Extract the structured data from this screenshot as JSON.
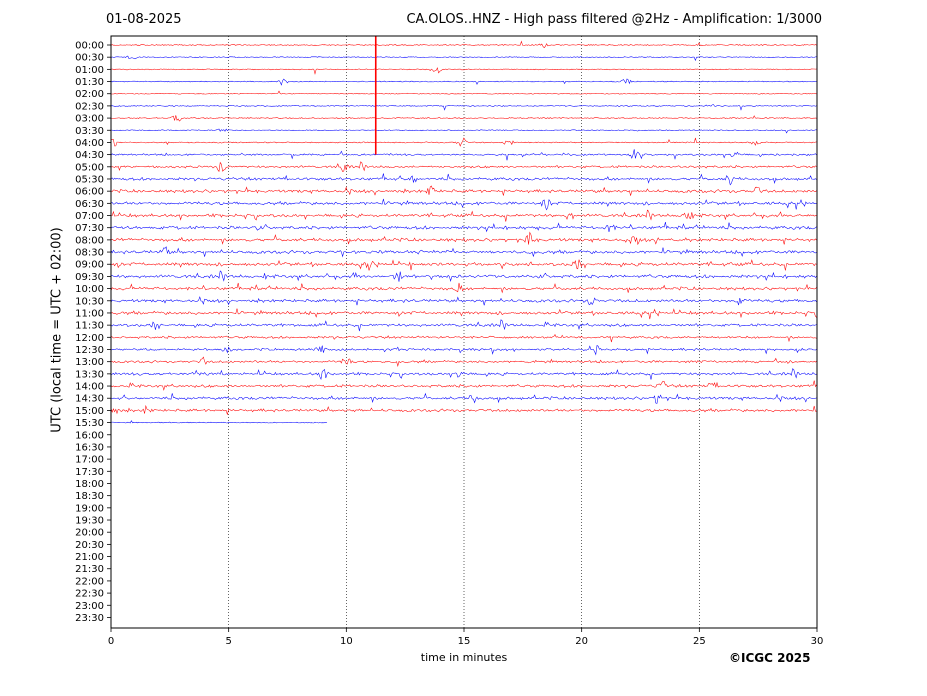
{
  "header": {
    "date": "01-08-2025",
    "title": "CA.OLOS..HNZ - High pass filtered @2Hz - Amplification: 1/3000"
  },
  "footer": {
    "copyright": "©ICGC 2025"
  },
  "colors": {
    "even_trace": "#ff0000",
    "odd_trace": "#0000ff",
    "grid": "#000000"
  },
  "chart_data": {
    "type": "line",
    "title": "CA.OLOS..HNZ - High pass filtered @2Hz - Amplification: 1/3000",
    "xlabel": "time in minutes",
    "ylabel": "UTC (local time = UTC + 02:00)",
    "xlim": [
      0,
      30
    ],
    "xticks": [
      0,
      5,
      10,
      15,
      20,
      25,
      30
    ],
    "grid_x": true,
    "rows": [
      "00:00",
      "00:30",
      "01:00",
      "01:30",
      "02:00",
      "02:30",
      "03:00",
      "03:30",
      "04:00",
      "04:30",
      "05:00",
      "05:30",
      "06:00",
      "06:30",
      "07:00",
      "07:30",
      "08:00",
      "08:30",
      "09:00",
      "09:30",
      "10:00",
      "10:30",
      "11:00",
      "11:30",
      "12:00",
      "12:30",
      "13:00",
      "13:30",
      "14:00",
      "14:30",
      "15:00",
      "15:30",
      "16:00",
      "16:30",
      "17:00",
      "17:30",
      "18:00",
      "18:30",
      "19:00",
      "19:30",
      "20:00",
      "20:30",
      "21:00",
      "21:30",
      "22:00",
      "22:30",
      "23:00",
      "23:30"
    ],
    "series": [
      {
        "row": "00:00",
        "end_min": 30,
        "activity": 0.05
      },
      {
        "row": "00:30",
        "end_min": 30,
        "activity": 0.05
      },
      {
        "row": "01:00",
        "end_min": 30,
        "activity": 0.05
      },
      {
        "row": "01:30",
        "end_min": 30,
        "activity": 0.05
      },
      {
        "row": "02:00",
        "end_min": 30,
        "activity": 0.05
      },
      {
        "row": "02:30",
        "end_min": 30,
        "activity": 0.05
      },
      {
        "row": "03:00",
        "end_min": 30,
        "activity": 0.08
      },
      {
        "row": "03:30",
        "end_min": 30,
        "activity": 0.08
      },
      {
        "row": "04:00",
        "end_min": 30,
        "activity": 0.15
      },
      {
        "row": "04:30",
        "end_min": 30,
        "activity": 0.4
      },
      {
        "row": "05:00",
        "end_min": 30,
        "activity": 0.6
      },
      {
        "row": "05:30",
        "end_min": 30,
        "activity": 0.8
      },
      {
        "row": "06:00",
        "end_min": 30,
        "activity": 0.9
      },
      {
        "row": "06:30",
        "end_min": 30,
        "activity": 0.9
      },
      {
        "row": "07:00",
        "end_min": 30,
        "activity": 0.9
      },
      {
        "row": "07:30",
        "end_min": 30,
        "activity": 1.0
      },
      {
        "row": "08:00",
        "end_min": 30,
        "activity": 1.0
      },
      {
        "row": "08:30",
        "end_min": 30,
        "activity": 1.0
      },
      {
        "row": "09:00",
        "end_min": 30,
        "activity": 1.0
      },
      {
        "row": "09:30",
        "end_min": 30,
        "activity": 1.0
      },
      {
        "row": "10:00",
        "end_min": 30,
        "activity": 0.9
      },
      {
        "row": "10:30",
        "end_min": 30,
        "activity": 0.9
      },
      {
        "row": "11:00",
        "end_min": 30,
        "activity": 0.9
      },
      {
        "row": "11:30",
        "end_min": 30,
        "activity": 0.8
      },
      {
        "row": "12:00",
        "end_min": 30,
        "activity": 0.6
      },
      {
        "row": "12:30",
        "end_min": 30,
        "activity": 0.6
      },
      {
        "row": "13:00",
        "end_min": 30,
        "activity": 0.6
      },
      {
        "row": "13:30",
        "end_min": 30,
        "activity": 0.7
      },
      {
        "row": "14:00",
        "end_min": 30,
        "activity": 0.8
      },
      {
        "row": "14:30",
        "end_min": 30,
        "activity": 0.8
      },
      {
        "row": "15:00",
        "end_min": 30,
        "activity": 0.8
      },
      {
        "row": "15:30",
        "end_min": 9.2,
        "activity": 0.05
      }
    ],
    "events": [
      {
        "row": "00:00",
        "min": 18.4,
        "amp": 0.2
      },
      {
        "row": "00:30",
        "min": 0.9,
        "amp": 0.2
      },
      {
        "row": "01:00",
        "min": 13.8,
        "amp": 0.6
      },
      {
        "row": "01:30",
        "min": 7.3,
        "amp": 0.2
      },
      {
        "row": "01:30",
        "min": 21.9,
        "amp": 0.3
      },
      {
        "row": "02:30",
        "min": 25.5,
        "amp": 0.2
      },
      {
        "row": "03:00",
        "min": 2.8,
        "amp": 0.4
      },
      {
        "row": "03:30",
        "min": 4.7,
        "amp": 0.2
      },
      {
        "row": "04:00",
        "min": 0.1,
        "amp": 0.5
      },
      {
        "row": "04:00",
        "min": 14.9,
        "amp": 0.6
      },
      {
        "row": "04:00",
        "min": 16.9,
        "amp": 0.5
      },
      {
        "row": "04:00",
        "min": 27.4,
        "amp": 0.3
      },
      {
        "row": "04:30",
        "min": 22.2,
        "amp": 0.8
      },
      {
        "row": "04:30",
        "min": 26.5,
        "amp": 0.6
      },
      {
        "row": "05:00",
        "min": 4.7,
        "amp": 0.7
      },
      {
        "row": "05:00",
        "min": 9.9,
        "amp": 0.6
      },
      {
        "row": "05:30",
        "min": 12.8,
        "amp": 0.7
      },
      {
        "row": "05:30",
        "min": 26.3,
        "amp": 0.6
      },
      {
        "row": "06:00",
        "min": 13.6,
        "amp": 0.6
      },
      {
        "row": "06:00",
        "min": 27.5,
        "amp": 0.6
      },
      {
        "row": "06:30",
        "min": 18.5,
        "amp": 0.8
      },
      {
        "row": "07:00",
        "min": 19.5,
        "amp": 0.7
      },
      {
        "row": "07:00",
        "min": 24.5,
        "amp": 0.6
      },
      {
        "row": "07:30",
        "min": 21.2,
        "amp": 0.7
      },
      {
        "row": "08:00",
        "min": 17.8,
        "amp": 0.8
      },
      {
        "row": "08:00",
        "min": 22.3,
        "amp": 0.6
      },
      {
        "row": "08:30",
        "min": 2.3,
        "amp": 0.6
      },
      {
        "row": "09:00",
        "min": 11.0,
        "amp": 0.6
      },
      {
        "row": "09:00",
        "min": 19.8,
        "amp": 0.7
      },
      {
        "row": "09:30",
        "min": 12.2,
        "amp": 0.7
      },
      {
        "row": "10:00",
        "min": 14.8,
        "amp": 0.6
      },
      {
        "row": "10:30",
        "min": 20.4,
        "amp": 0.5
      },
      {
        "row": "10:30",
        "min": 26.7,
        "amp": 0.6
      },
      {
        "row": "11:30",
        "min": 1.9,
        "amp": 0.5
      },
      {
        "row": "12:30",
        "min": 4.9,
        "amp": 0.5
      },
      {
        "row": "12:30",
        "min": 8.9,
        "amp": 0.5
      },
      {
        "row": "12:30",
        "min": 20.6,
        "amp": 0.5
      },
      {
        "row": "13:00",
        "min": 3.9,
        "amp": 0.5
      },
      {
        "row": "13:00",
        "min": 10.0,
        "amp": 0.5
      },
      {
        "row": "13:30",
        "min": 9.0,
        "amp": 0.8
      },
      {
        "row": "13:30",
        "min": 14.8,
        "amp": 0.7
      },
      {
        "row": "14:00",
        "min": 23.4,
        "amp": 0.8
      },
      {
        "row": "14:00",
        "min": 25.5,
        "amp": 0.6
      },
      {
        "row": "14:30",
        "min": 15.4,
        "amp": 0.5
      },
      {
        "row": "14:30",
        "min": 23.2,
        "amp": 0.6
      },
      {
        "row": "15:00",
        "min": 0.1,
        "amp": 0.6
      },
      {
        "row": "15:00",
        "min": 1.5,
        "amp": 0.5
      }
    ],
    "spike": {
      "row_start": "00:00",
      "row_end": "04:30",
      "min": 11.25,
      "amp": "clipped"
    }
  }
}
